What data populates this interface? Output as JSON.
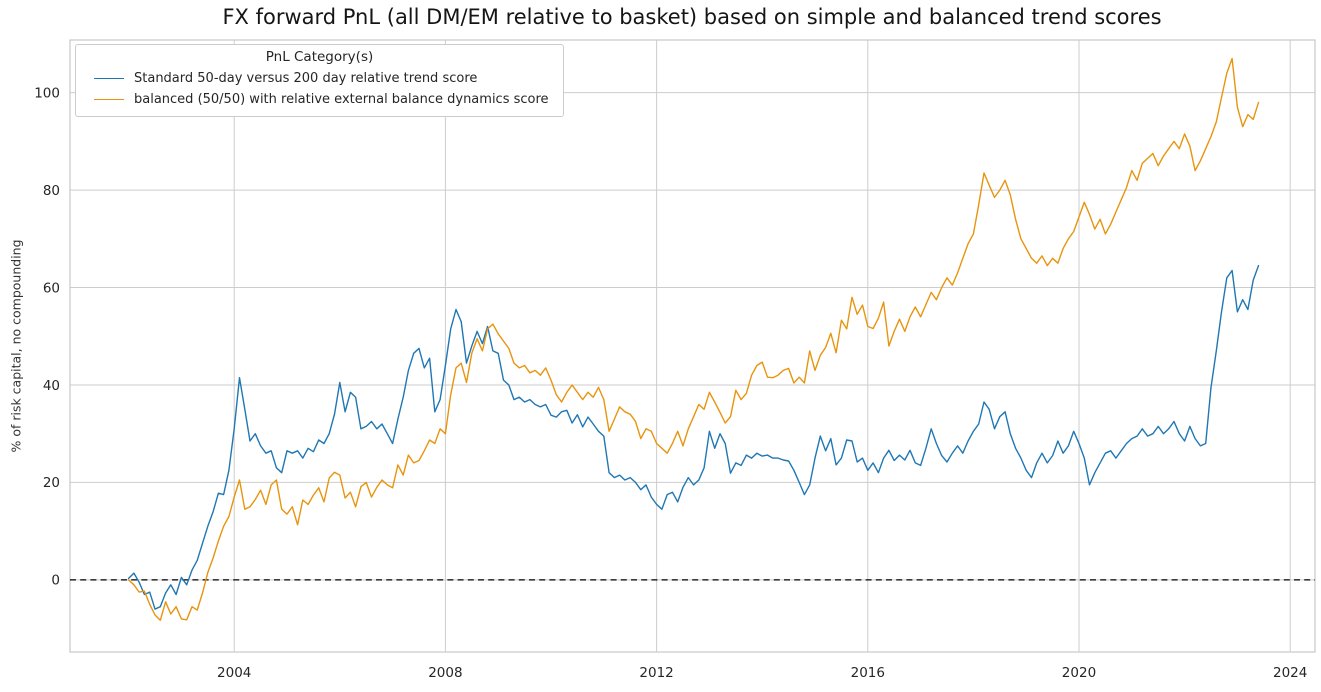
{
  "chart_data": {
    "type": "line",
    "title": "FX forward PnL (all DM/EM relative to basket) based on simple and balanced trend scores",
    "xlabel": "",
    "ylabel": "% of risk capital, no compounding",
    "legend_title": "PnL Category(s)",
    "legend_position": "upper left",
    "grid": true,
    "background": "#ffffff",
    "grid_color": "#cdcdcd",
    "spine_color": "#c8c8c8",
    "x_ticks": [
      2004,
      2008,
      2012,
      2016,
      2020,
      2024
    ],
    "y_ticks": [
      0,
      20,
      40,
      60,
      80,
      100
    ],
    "xlim": [
      2000.89,
      2024.47
    ],
    "ylim": [
      -14.8,
      110.8
    ],
    "zero_line": {
      "value": 0,
      "style": "dashed",
      "color": "#000000"
    },
    "x_unit": "year",
    "x_start": 2002.0,
    "x_step": 0.1,
    "series": [
      {
        "name": "Standard 50-day versus 200 day relative trend score",
        "color": "#1f77b4",
        "values": [
          0.3,
          1.4,
          -0.5,
          -3.0,
          -2.5,
          -6.0,
          -5.5,
          -2.7,
          -1.0,
          -3.0,
          0.5,
          -1.0,
          2.0,
          4.0,
          7.5,
          11.0,
          14.0,
          17.8,
          17.5,
          22.5,
          31.0,
          41.5,
          35.0,
          28.5,
          30.0,
          27.5,
          26.0,
          26.5,
          23.0,
          22.0,
          26.5,
          26.0,
          26.5,
          25.0,
          27.0,
          26.3,
          28.7,
          28.0,
          30.0,
          34.0,
          40.5,
          34.5,
          38.5,
          37.5,
          31.0,
          31.5,
          32.5,
          31.0,
          32.0,
          30.0,
          28.0,
          33.0,
          37.5,
          43.0,
          46.5,
          47.5,
          43.5,
          45.5,
          34.5,
          37.0,
          44.0,
          51.5,
          55.5,
          53.0,
          44.5,
          48.0,
          51.0,
          48.5,
          52.0,
          47.0,
          46.5,
          41.0,
          40.0,
          37.0,
          37.5,
          36.5,
          37.0,
          36.0,
          35.5,
          36.0,
          33.8,
          33.4,
          34.5,
          34.8,
          32.2,
          33.9,
          31.4,
          33.4,
          32.0,
          30.5,
          29.5,
          22.0,
          21.0,
          21.5,
          20.5,
          21.0,
          20.0,
          18.5,
          19.5,
          17.0,
          15.5,
          14.5,
          17.5,
          18.0,
          16.0,
          19.0,
          21.0,
          19.5,
          20.5,
          23.0,
          30.5,
          27.0,
          30.0,
          28.0,
          21.9,
          24.0,
          23.5,
          25.6,
          25.0,
          26.0,
          25.4,
          25.6,
          25.0,
          25.0,
          24.6,
          24.4,
          22.5,
          20.0,
          17.5,
          19.5,
          25.0,
          29.5,
          26.5,
          29.0,
          23.6,
          25.0,
          28.7,
          28.5,
          24.2,
          25.0,
          22.5,
          24.0,
          22.0,
          25.0,
          26.6,
          24.5,
          25.6,
          24.6,
          26.6,
          24.0,
          23.5,
          27.0,
          31.0,
          28.0,
          25.5,
          24.2,
          26.0,
          27.5,
          26.0,
          28.5,
          30.5,
          32.0,
          36.5,
          35.0,
          31.0,
          33.5,
          34.5,
          30.0,
          27.0,
          25.0,
          22.5,
          21.0,
          24.0,
          26.0,
          24.0,
          25.5,
          28.5,
          26.0,
          27.5,
          30.5,
          28.0,
          25.0,
          19.5,
          22.0,
          24.0,
          26.0,
          26.5,
          25.0,
          26.5,
          28.0,
          29.0,
          29.5,
          31.0,
          29.5,
          30.0,
          31.5,
          30.0,
          31.0,
          32.5,
          30.0,
          28.5,
          31.5,
          29.0,
          27.5,
          28.0,
          39.5,
          47.0,
          55.0,
          62.0,
          63.5,
          55.0,
          57.5,
          55.5,
          61.5,
          64.5
        ]
      },
      {
        "name": "balanced (50/50) with relative external balance dynamics score",
        "color": "#e8940e",
        "values": [
          0.0,
          -1.0,
          -2.5,
          -2.3,
          -5.0,
          -7.2,
          -8.3,
          -4.5,
          -7.0,
          -5.5,
          -8.0,
          -8.2,
          -5.5,
          -6.2,
          -2.7,
          1.5,
          4.5,
          8.0,
          11.0,
          13.0,
          17.0,
          20.5,
          14.5,
          15.0,
          16.5,
          18.4,
          15.5,
          19.5,
          20.5,
          14.5,
          13.5,
          15.0,
          11.3,
          16.4,
          15.5,
          17.4,
          18.9,
          16.0,
          20.9,
          22.1,
          21.5,
          16.8,
          18.0,
          15.0,
          19.1,
          20.0,
          17.0,
          19.0,
          20.5,
          19.5,
          18.9,
          23.6,
          21.5,
          25.6,
          24.0,
          24.5,
          26.5,
          28.7,
          28.0,
          31.0,
          30.0,
          38.0,
          43.5,
          44.5,
          40.5,
          46.5,
          49.5,
          47.0,
          51.5,
          52.5,
          50.5,
          49.0,
          47.5,
          44.5,
          43.5,
          44.0,
          42.5,
          43.0,
          42.0,
          43.5,
          41.0,
          38.0,
          36.5,
          38.5,
          40.0,
          38.5,
          37.0,
          38.5,
          37.5,
          39.5,
          37.0,
          30.5,
          33.0,
          35.5,
          34.5,
          34.0,
          32.5,
          29.0,
          31.0,
          30.5,
          28.0,
          27.0,
          26.0,
          28.0,
          30.5,
          27.5,
          31.0,
          33.5,
          36.0,
          35.0,
          38.5,
          36.5,
          34.4,
          32.2,
          33.5,
          38.9,
          37.0,
          38.3,
          42.0,
          44.0,
          44.7,
          41.6,
          41.5,
          42.0,
          43.0,
          43.4,
          40.4,
          41.6,
          40.4,
          47.0,
          43.0,
          46.1,
          47.7,
          50.6,
          46.6,
          53.3,
          51.5,
          58.0,
          54.5,
          56.4,
          52.0,
          51.6,
          53.7,
          57.0,
          48.0,
          51.0,
          53.5,
          51.0,
          54.0,
          56.0,
          54.0,
          56.5,
          59.0,
          57.5,
          60.0,
          62.0,
          60.5,
          63.0,
          66.0,
          69.0,
          71.0,
          77.0,
          83.5,
          81.0,
          78.5,
          80.0,
          82.0,
          79.0,
          74.0,
          70.0,
          68.0,
          66.0,
          65.0,
          66.5,
          64.5,
          66.0,
          65.0,
          68.0,
          70.0,
          71.5,
          74.5,
          77.5,
          75.0,
          72.0,
          74.0,
          71.0,
          73.0,
          75.5,
          78.0,
          80.5,
          84.0,
          82.0,
          85.5,
          86.5,
          87.5,
          85.0,
          87.0,
          88.5,
          90.0,
          88.5,
          91.5,
          89.0,
          84.0,
          86.0,
          88.5,
          91.0,
          94.0,
          99.0,
          104.0,
          107.0,
          97.0,
          93.0,
          95.5,
          94.5,
          98.0
        ]
      }
    ]
  }
}
